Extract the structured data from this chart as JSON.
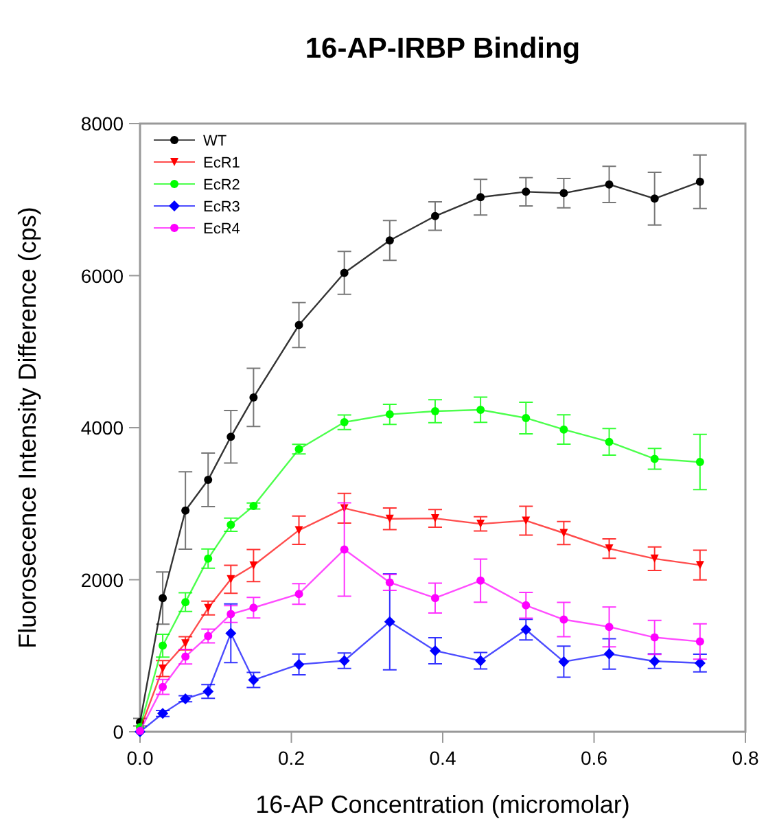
{
  "chart_data": {
    "type": "line",
    "title": "16-AP-IRBP Binding",
    "xlabel": "16-AP Concentration (micromolar)",
    "ylabel": "Fluorosecence Intensity Difference (cps)",
    "x": [
      0,
      0.03,
      0.06,
      0.09,
      0.12,
      0.15,
      0.21,
      0.27,
      0.33,
      0.39,
      0.45,
      0.51,
      0.56,
      0.62,
      0.68,
      0.74
    ],
    "xlim": [
      0,
      0.8
    ],
    "xticks": [
      {
        "value": 0,
        "label": "0.0"
      },
      {
        "value": 0.2,
        "label": "0.2"
      },
      {
        "value": 0.4,
        "label": "0.4"
      },
      {
        "value": 0.6,
        "label": "0.6"
      },
      {
        "value": 0.8,
        "label": "0.8"
      }
    ],
    "ylim": [
      0,
      8000
    ],
    "yticks": [
      0,
      2000,
      4000,
      6000,
      8000
    ],
    "grid": false,
    "legend": "top left",
    "marker": "circle",
    "line_style": "solid",
    "series": [
      {
        "name": "WT",
        "color": "#000000",
        "values": [
          126,
          1759,
          2910,
          3313,
          3880,
          4398,
          5350,
          6036,
          6463,
          6783,
          7031,
          7103,
          7085,
          7199,
          7013,
          7235
        ],
        "errors": [
          50,
          343,
          509,
          352,
          346,
          382,
          295,
          283,
          262,
          187,
          235,
          187,
          193,
          238,
          346,
          352
        ]
      },
      {
        "name": "EcR1",
        "color": "#ff0000",
        "marker": "triangle",
        "values": [
          30,
          831,
          1163,
          1627,
          2006,
          2187,
          2651,
          2940,
          2801,
          2807,
          2735,
          2777,
          2614,
          2410,
          2277,
          2193
        ],
        "errors": [
          null,
          105,
          87,
          90,
          184,
          211,
          187,
          196,
          142,
          117,
          93,
          190,
          151,
          127,
          154,
          196
        ]
      },
      {
        "name": "EcR2",
        "color": "#00ff00",
        "values": [
          60,
          1133,
          1705,
          2277,
          2723,
          2970,
          3717,
          4072,
          4175,
          4217,
          4235,
          4127,
          3976,
          3813,
          3590,
          3548
        ],
        "errors": [
          null,
          150,
          123,
          126,
          87,
          40,
          63,
          96,
          132,
          151,
          166,
          208,
          193,
          175,
          136,
          364
        ]
      },
      {
        "name": "EcR3",
        "color": "#0000ff",
        "marker": "diamond",
        "values": [
          0,
          241,
          434,
          530,
          1295,
          681,
          886,
          934,
          1446,
          1066,
          934,
          1343,
          922,
          1024,
          928,
          904
        ],
        "errors": [
          null,
          40,
          40,
          90,
          386,
          99,
          136,
          102,
          630,
          172,
          108,
          136,
          205,
          199,
          96,
          117
        ]
      },
      {
        "name": "EcR4",
        "color": "#ff00ff",
        "values": [
          12,
          590,
          988,
          1259,
          1548,
          1632,
          1813,
          2398,
          1964,
          1759,
          1988,
          1663,
          1476,
          1380,
          1241,
          1187
        ],
        "errors": [
          null,
          99,
          96,
          90,
          111,
          136,
          136,
          614,
          105,
          196,
          283,
          169,
          226,
          262,
          223,
          232
        ]
      }
    ]
  }
}
